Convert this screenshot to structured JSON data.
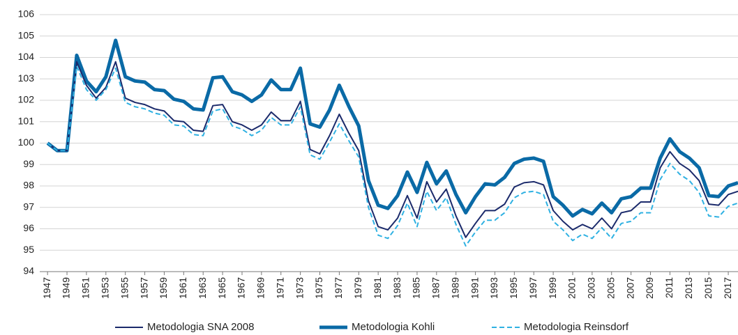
{
  "chart_data": {
    "type": "line",
    "x": [
      1947,
      1948,
      1949,
      1950,
      1951,
      1952,
      1953,
      1954,
      1955,
      1956,
      1957,
      1958,
      1959,
      1960,
      1961,
      1962,
      1963,
      1964,
      1965,
      1966,
      1967,
      1968,
      1969,
      1970,
      1971,
      1972,
      1973,
      1974,
      1975,
      1976,
      1977,
      1978,
      1979,
      1980,
      1981,
      1982,
      1983,
      1984,
      1985,
      1986,
      1987,
      1988,
      1989,
      1990,
      1991,
      1992,
      1993,
      1994,
      1995,
      1996,
      1997,
      1998,
      1999,
      2000,
      2001,
      2002,
      2003,
      2004,
      2005,
      2006,
      2007,
      2008,
      2009,
      2010,
      2011,
      2012,
      2013,
      2014,
      2015,
      2016,
      2017,
      2018
    ],
    "series": [
      {
        "name": "Metodologia SNA 2008",
        "color": "#1b2a6b",
        "line_width": 2,
        "dashed": false,
        "values": [
          100,
          99.65,
          99.65,
          103.8,
          102.7,
          102.1,
          102.6,
          103.8,
          102.1,
          101.9,
          101.8,
          101.6,
          101.5,
          101.05,
          101.0,
          100.6,
          100.55,
          101.75,
          101.8,
          101.0,
          100.85,
          100.6,
          100.85,
          101.45,
          101.05,
          101.05,
          101.95,
          99.7,
          99.5,
          100.35,
          101.35,
          100.45,
          99.65,
          97.3,
          96.1,
          95.95,
          96.5,
          97.55,
          96.5,
          98.2,
          97.25,
          97.85,
          96.6,
          95.6,
          96.25,
          96.85,
          96.85,
          97.15,
          97.95,
          98.15,
          98.2,
          98.05,
          96.85,
          96.35,
          95.95,
          96.2,
          96.0,
          96.5,
          96.0,
          96.75,
          96.85,
          97.25,
          97.25,
          98.85,
          99.6,
          99.05,
          98.75,
          98.25,
          97.15,
          97.1,
          97.6,
          97.75
        ]
      },
      {
        "name": "Metodologia Kohli",
        "color": "#0a6aa6",
        "line_width": 5,
        "dashed": false,
        "values": [
          100,
          99.65,
          99.65,
          104.1,
          102.9,
          102.4,
          103.1,
          104.8,
          103.1,
          102.9,
          102.85,
          102.5,
          102.45,
          102.05,
          101.95,
          101.6,
          101.55,
          103.05,
          103.1,
          102.4,
          102.25,
          101.95,
          102.25,
          102.95,
          102.5,
          102.5,
          103.5,
          100.9,
          100.75,
          101.55,
          102.7,
          101.7,
          100.8,
          98.25,
          97.1,
          96.95,
          97.55,
          98.65,
          97.7,
          99.1,
          98.1,
          98.7,
          97.6,
          96.75,
          97.5,
          98.1,
          98.05,
          98.4,
          99.05,
          99.25,
          99.3,
          99.15,
          97.5,
          97.1,
          96.6,
          96.9,
          96.7,
          97.2,
          96.75,
          97.4,
          97.5,
          97.9,
          97.9,
          99.3,
          100.2,
          99.6,
          99.3,
          98.85,
          97.55,
          97.5,
          98.0,
          98.15
        ]
      },
      {
        "name": "Metodologia Reinsdorf",
        "color": "#2fb1e2",
        "line_width": 2,
        "dashed": true,
        "values": [
          100,
          99.65,
          99.65,
          103.6,
          102.5,
          102.0,
          102.5,
          103.5,
          101.9,
          101.7,
          101.6,
          101.4,
          101.3,
          100.85,
          100.8,
          100.4,
          100.35,
          101.5,
          101.6,
          100.8,
          100.65,
          100.35,
          100.6,
          101.2,
          100.85,
          100.85,
          101.7,
          99.45,
          99.25,
          100.05,
          100.9,
          100.1,
          99.35,
          97.0,
          95.7,
          95.55,
          96.15,
          97.2,
          96.1,
          97.75,
          96.85,
          97.45,
          96.2,
          95.2,
          95.85,
          96.4,
          96.4,
          96.75,
          97.45,
          97.7,
          97.75,
          97.6,
          96.35,
          95.95,
          95.45,
          95.75,
          95.55,
          96.05,
          95.55,
          96.25,
          96.35,
          96.75,
          96.75,
          98.3,
          99.05,
          98.55,
          98.25,
          97.7,
          96.6,
          96.55,
          97.05,
          97.2
        ]
      }
    ],
    "xlim": [
      1946.2,
      2018
    ],
    "xticks": [
      1947,
      1949,
      1951,
      1953,
      1955,
      1957,
      1959,
      1961,
      1963,
      1965,
      1967,
      1969,
      1971,
      1973,
      1975,
      1977,
      1979,
      1981,
      1983,
      1985,
      1987,
      1989,
      1991,
      1993,
      1995,
      1997,
      1999,
      2001,
      2003,
      2005,
      2007,
      2009,
      2011,
      2013,
      2015,
      2017
    ],
    "ylim": [
      94,
      106
    ],
    "yticks": [
      94,
      95,
      96,
      97,
      98,
      99,
      100,
      101,
      102,
      103,
      104,
      105,
      106
    ],
    "grid": true
  }
}
